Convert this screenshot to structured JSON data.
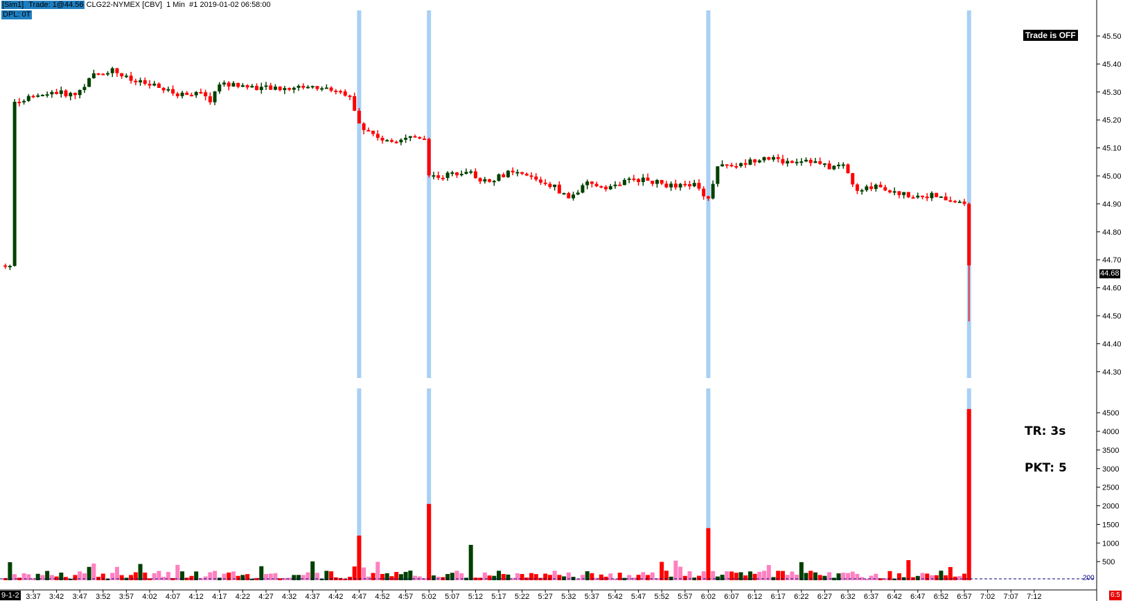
{
  "header": {
    "account": "[Sim1]",
    "trade_info": "Trade: 1@44.56",
    "instrument": "CLG22-NYMEX [CBV]",
    "interval": "1 Min",
    "chart_info": "#1 2019-01-02 06:58:00",
    "dpl": "DPL: 0T"
  },
  "trade_status": "Trade is OFF",
  "info": {
    "tr": "TR: 3s",
    "pkt": "PKT: 5"
  },
  "symbol_box": "9-1-2",
  "last_price_label": "44.68",
  "bottom_right_label": "6:5",
  "colors": {
    "up": "#004000",
    "down": "#ff0000",
    "highlight": "#a9d0f5",
    "volume_light": "#ff80c0",
    "header_highlight": "#1e7fc0"
  },
  "chart_data": {
    "type": "candlestick",
    "x_ticks": [
      "3:37",
      "3:42",
      "3:47",
      "3:52",
      "3:57",
      "4:02",
      "4:07",
      "4:12",
      "4:17",
      "4:22",
      "4:27",
      "4:32",
      "4:37",
      "4:42",
      "4:47",
      "4:52",
      "4:57",
      "5:02",
      "5:07",
      "5:12",
      "5:17",
      "5:22",
      "5:27",
      "5:32",
      "5:37",
      "5:42",
      "5:47",
      "5:52",
      "5:57",
      "6:02",
      "6:07",
      "6:12",
      "6:17",
      "6:22",
      "6:27",
      "6:32",
      "6:37",
      "6:42",
      "6:47",
      "6:52",
      "6:57",
      "7:02",
      "7:07",
      "7:12"
    ],
    "price_axis": {
      "ylim": [
        44.25,
        45.6
      ],
      "ticks": [
        "45.50",
        "45.40",
        "45.30",
        "45.20",
        "45.10",
        "45.00",
        "44.90",
        "44.80",
        "44.70",
        "44.60",
        "44.50",
        "44.40",
        "44.30"
      ]
    },
    "volume_axis": {
      "ylim": [
        0,
        4700
      ],
      "ticks": [
        "4500",
        "4000",
        "3500",
        "3000",
        "2500",
        "2000",
        "1500",
        "1000",
        "500"
      ],
      "reference_level": 200,
      "reference_label": "200"
    },
    "highlight_times": [
      "4:47",
      "5:02",
      "6:02",
      "6:58"
    ],
    "price_path": [
      {
        "t": "3:33",
        "p": 45.27
      },
      {
        "t": "3:38",
        "p": 45.28
      },
      {
        "t": "3:41",
        "p": 45.3
      },
      {
        "t": "3:46",
        "p": 45.29
      },
      {
        "t": "3:50",
        "p": 45.36
      },
      {
        "t": "3:54",
        "p": 45.38
      },
      {
        "t": "3:58",
        "p": 45.34
      },
      {
        "t": "4:03",
        "p": 45.32
      },
      {
        "t": "4:08",
        "p": 45.29
      },
      {
        "t": "4:12",
        "p": 45.3
      },
      {
        "t": "4:15",
        "p": 45.27
      },
      {
        "t": "4:17",
        "p": 45.33
      },
      {
        "t": "4:23",
        "p": 45.32
      },
      {
        "t": "4:29",
        "p": 45.31
      },
      {
        "t": "4:35",
        "p": 45.32
      },
      {
        "t": "4:41",
        "p": 45.31
      },
      {
        "t": "4:45",
        "p": 45.29
      },
      {
        "t": "4:47",
        "p": 45.18
      },
      {
        "t": "4:50",
        "p": 45.15
      },
      {
        "t": "4:53",
        "p": 45.12
      },
      {
        "t": "4:57",
        "p": 45.14
      },
      {
        "t": "5:01",
        "p": 45.14
      },
      {
        "t": "5:02",
        "p": 45.0
      },
      {
        "t": "5:05",
        "p": 45.0
      },
      {
        "t": "5:10",
        "p": 45.02
      },
      {
        "t": "5:14",
        "p": 44.98
      },
      {
        "t": "5:19",
        "p": 45.01
      },
      {
        "t": "5:23",
        "p": 45.0
      },
      {
        "t": "5:29",
        "p": 44.96
      },
      {
        "t": "5:32",
        "p": 44.92
      },
      {
        "t": "5:36",
        "p": 44.97
      },
      {
        "t": "5:41",
        "p": 44.96
      },
      {
        "t": "5:46",
        "p": 44.99
      },
      {
        "t": "5:50",
        "p": 44.98
      },
      {
        "t": "5:55",
        "p": 44.96
      },
      {
        "t": "5:59",
        "p": 44.97
      },
      {
        "t": "6:02",
        "p": 44.92
      },
      {
        "t": "6:04",
        "p": 45.04
      },
      {
        "t": "6:09",
        "p": 45.04
      },
      {
        "t": "6:14",
        "p": 45.07
      },
      {
        "t": "6:18",
        "p": 45.05
      },
      {
        "t": "6:23",
        "p": 45.06
      },
      {
        "t": "6:28",
        "p": 45.03
      },
      {
        "t": "6:31",
        "p": 45.04
      },
      {
        "t": "6:34",
        "p": 44.94
      },
      {
        "t": "6:38",
        "p": 44.97
      },
      {
        "t": "6:42",
        "p": 44.94
      },
      {
        "t": "6:46",
        "p": 44.93
      },
      {
        "t": "6:50",
        "p": 44.93
      },
      {
        "t": "6:54",
        "p": 44.91
      },
      {
        "t": "6:57",
        "p": 44.9
      },
      {
        "t": "6:58",
        "p": 44.68
      }
    ],
    "volume_spikes": [
      {
        "t": "4:47",
        "v": 1200
      },
      {
        "t": "5:02",
        "v": 2050
      },
      {
        "t": "5:11",
        "v": 950
      },
      {
        "t": "6:02",
        "v": 1400
      },
      {
        "t": "6:58",
        "v": 4600
      }
    ]
  }
}
